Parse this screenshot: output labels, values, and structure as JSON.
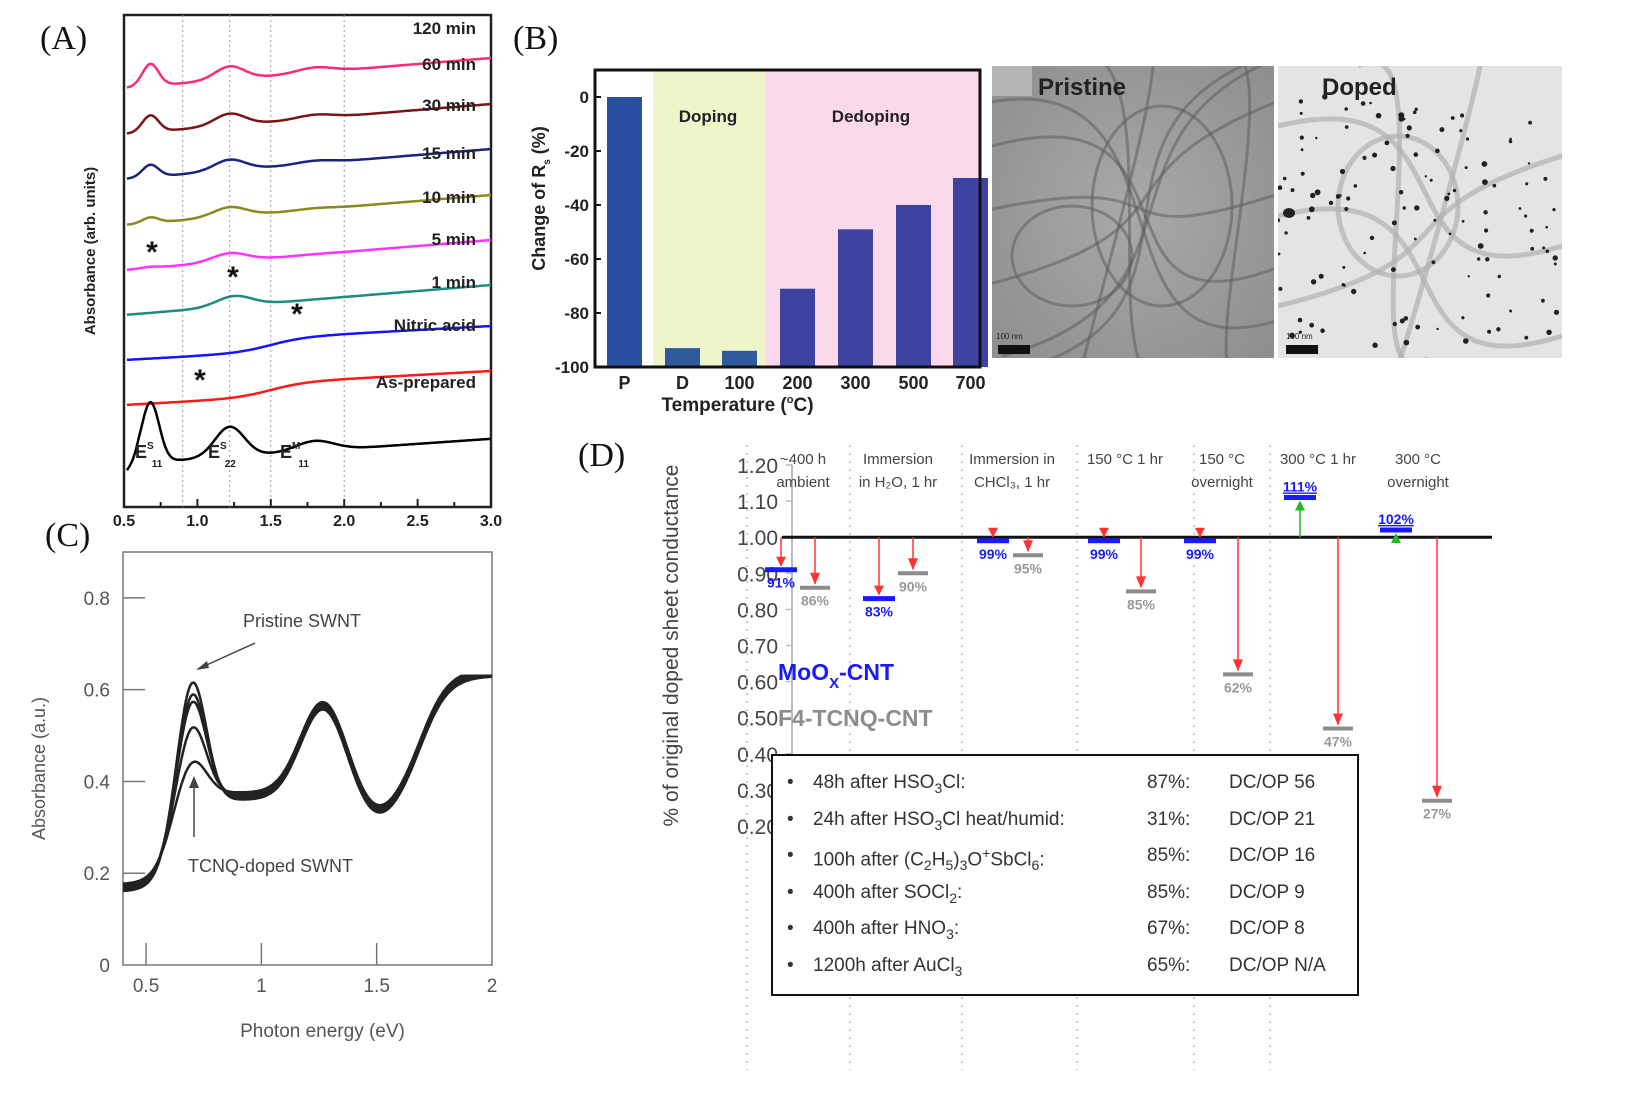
{
  "panels": {
    "A": "(A)",
    "B": "(B)",
    "C": "(C)",
    "D": "(D)"
  },
  "chart_data": [
    {
      "id": "A",
      "type": "line",
      "title": "",
      "xlabel": "",
      "ylabel": "Absorbance (arb. units)",
      "xlim": [
        0.5,
        3.0
      ],
      "xticks": [
        "0.5",
        "1.0",
        "1.5",
        "2.0",
        "2.5",
        "3.0"
      ],
      "vlines": [
        0.9,
        1.22,
        1.5,
        2.0
      ],
      "series": [
        {
          "name": "120 min",
          "color": "#ff2a7a",
          "offset": 9
        },
        {
          "name": "60 min",
          "color": "#7a1416",
          "offset": 8
        },
        {
          "name": "30 min",
          "color": "#1a237e",
          "offset": 7
        },
        {
          "name": "15 min",
          "color": "#8a8a1e",
          "offset": 6
        },
        {
          "name": "10 min",
          "color": "#ff33ff",
          "offset": 5
        },
        {
          "name": "5 min",
          "color": "#1e8a80",
          "offset": 4
        },
        {
          "name": "1 min",
          "color": "#1515ff",
          "offset": 3
        },
        {
          "name": "Nitric acid",
          "color": "#ff1a1a",
          "offset": 2
        },
        {
          "name": "As-prepared",
          "color": "#000000",
          "offset": 1
        }
      ],
      "series_peak_strength": [
        1.0,
        0.75,
        0.55,
        0.25,
        0.05,
        0.0,
        0.0,
        0.0,
        1.6
      ],
      "annotations": [
        "*",
        "*",
        "*",
        "*"
      ],
      "peak_labels": [
        {
          "main": "E",
          "sup": "S",
          "sub": "11",
          "x": 0.67
        },
        {
          "main": "E",
          "sup": "S",
          "sub": "22",
          "x": 1.22
        },
        {
          "main": "E",
          "sup": "M",
          "sub": "11",
          "x": 1.75
        }
      ]
    },
    {
      "id": "B",
      "type": "bar",
      "title": "",
      "xlabel": "Temperature (°C)",
      "ylabel": "Change of R_s (%)",
      "ylabel_main": "Change of R",
      "ylabel_sub": "s",
      "ylabel_tail": " (%)",
      "xlabel_main": "Temperature (",
      "xlabel_sup": "o",
      "xlabel_tail": "C)",
      "categories": [
        "P",
        "D",
        "100",
        "200",
        "300",
        "500",
        "700"
      ],
      "values": [
        0,
        -93,
        -94,
        -71,
        -49,
        -40,
        -30
      ],
      "ylim": [
        -100,
        10
      ],
      "yticks": [
        "0",
        "-20",
        "-40",
        "-60",
        "-80",
        "-100"
      ],
      "regions": [
        {
          "label": "Doping",
          "from": "D",
          "to": "100",
          "color": "#eef5c8"
        },
        {
          "label": "Dedoping",
          "from": "200",
          "to": "700",
          "color": "#fbd9ea"
        }
      ],
      "bar_colors": [
        "#2a4fa0",
        "#2f5a9c",
        "#2f5a9c",
        "#3d43a0",
        "#3d43a0",
        "#3d43a0",
        "#3d43a0"
      ]
    },
    {
      "id": "C",
      "type": "line",
      "title": "",
      "xlabel": "Photon energy (eV)",
      "ylabel": "Absorbance (a.u.)",
      "xlim": [
        0.4,
        2.0
      ],
      "ylim": [
        0,
        0.9
      ],
      "xticks": [
        "0.5",
        "1",
        "1.5",
        "2"
      ],
      "yticks": [
        "0",
        "0.2",
        "0.4",
        "0.6",
        "0.8"
      ],
      "series_peak_values": [
        0.63,
        0.6,
        0.58,
        0.52,
        0.44
      ],
      "annotations": [
        {
          "text": "Pristine SWNT"
        },
        {
          "text": "TCNQ-doped SWNT"
        }
      ]
    },
    {
      "id": "D",
      "type": "bar",
      "title": "",
      "ylabel": "% of original doped sheet conductance",
      "ylim": [
        0.2,
        1.2
      ],
      "yticks": [
        "1.20",
        "1.10",
        "1.00",
        "0.90",
        "0.80",
        "0.70",
        "0.60",
        "0.50",
        "0.40",
        "0.30",
        "0.20"
      ],
      "categories": [
        [
          "~400 h",
          "ambient"
        ],
        [
          "Immersion",
          "in H₂O, 1 hr"
        ],
        [
          "Immersion in",
          "CHCl₃, 1 hr"
        ],
        [
          "150 °C 1 hr",
          ""
        ],
        [
          "150 °C",
          "overnight"
        ],
        [
          "300 °C 1 hr",
          ""
        ],
        [
          "300 °C",
          "overnight"
        ]
      ],
      "series": [
        {
          "name": "MoOx-CNT",
          "color": "#1a1aff",
          "values": [
            0.91,
            0.83,
            0.99,
            0.99,
            0.99,
            1.11,
            1.02
          ],
          "labels": [
            "91%",
            "83%",
            "99%",
            "99%",
            "99%",
            "111%",
            "102%"
          ]
        },
        {
          "name": "F4-TCNQ-CNT",
          "color": "#8c8c8c",
          "values": [
            0.86,
            0.9,
            0.95,
            0.85,
            0.62,
            0.47,
            0.27
          ],
          "labels": [
            "86%",
            "90%",
            "95%",
            "85%",
            "62%",
            "47%",
            "27%"
          ]
        }
      ],
      "legend": {
        "moox_main": "MoO",
        "moox_sub": "X",
        "moox_tail": "-CNT",
        "f4": "F4-TCNQ-CNT"
      },
      "reference_line": 1.0,
      "table": [
        {
          "label_html": "48h after HSO<sub>3</sub>Cl:",
          "pct": "87%:",
          "dcop": "DC/OP 56"
        },
        {
          "label_html": "24h after HSO<sub>3</sub>Cl heat/humid:",
          "pct": "31%:",
          "dcop": "DC/OP 21"
        },
        {
          "label_html": "100h after (C<sub>2</sub>H<sub>5</sub>)<sub>3</sub>O<sup>+</sup>SbCl<sub>6</sub>:",
          "pct": "85%:",
          "dcop": "DC/OP 16"
        },
        {
          "label_html": "400h after SOCl<sub>2</sub>:",
          "pct": "85%:",
          "dcop": "DC/OP 9"
        },
        {
          "label_html": "400h after HNO<sub>3</sub>:",
          "pct": "67%:",
          "dcop": "DC/OP 8"
        },
        {
          "label_html": "1200h after AuCl<sub>3</sub>",
          "pct": "65%:",
          "dcop": "DC/OP N/A"
        }
      ]
    }
  ],
  "tem_images": [
    {
      "title": "Pristine",
      "scale": "100 nm"
    },
    {
      "title": "Doped",
      "scale": "100 nm"
    }
  ]
}
